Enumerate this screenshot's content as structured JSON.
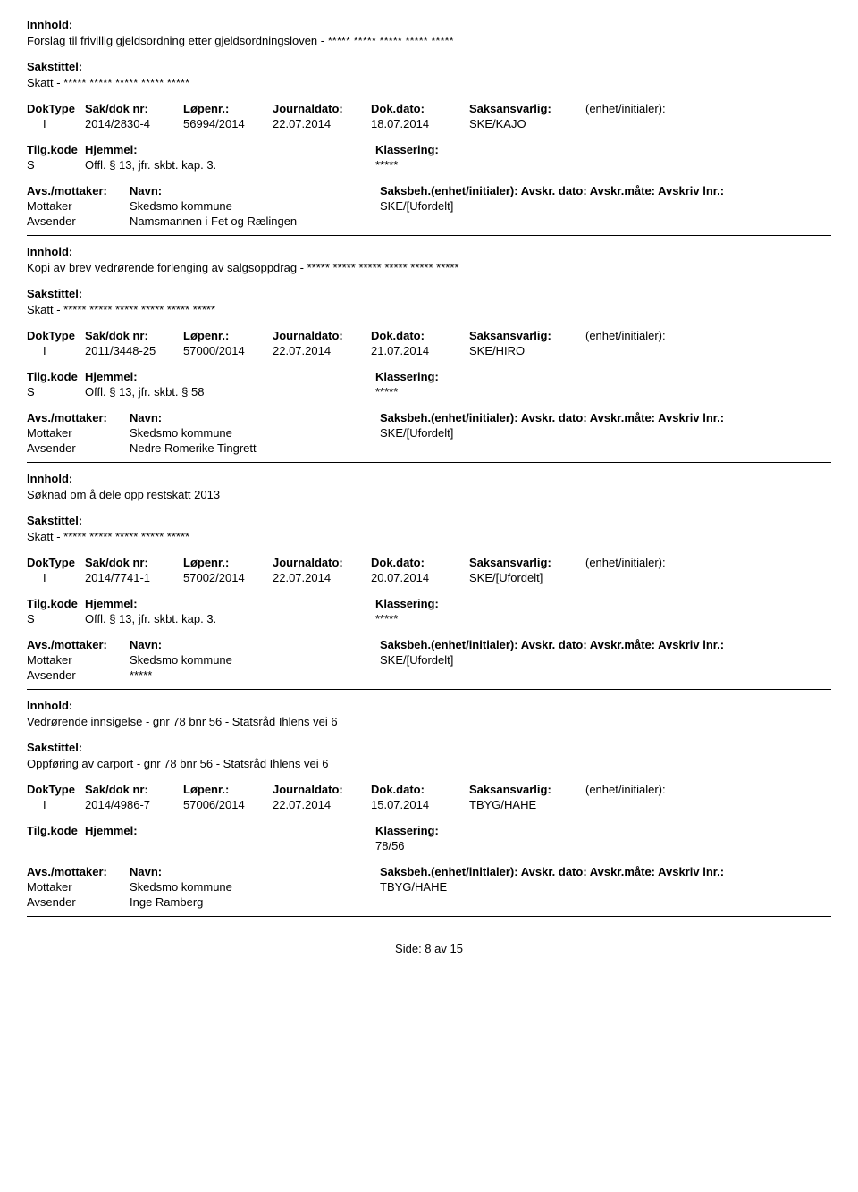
{
  "labels": {
    "innhold": "Innhold:",
    "sakstittel": "Sakstittel:",
    "doktype": "DokType",
    "sakdok": "Sak/dok nr:",
    "lopenr": "Løpenr.:",
    "journaldato": "Journaldato:",
    "dokdato": "Dok.dato:",
    "saksansvarlig": "Saksansvarlig:",
    "enhet": "(enhet/initialer):",
    "tilgkode": "Tilg.kode",
    "hjemmel": "Hjemmel:",
    "klassering": "Klassering:",
    "avsmot": "Avs./mottaker:",
    "navn": "Navn:",
    "saksbeh_line": "Saksbeh.(enhet/initialer): Avskr. dato:  Avskr.måte:  Avskriv lnr.:",
    "mottaker": "Mottaker",
    "avsender": "Avsender"
  },
  "entries": [
    {
      "innhold": "Forslag til frivillig gjeldsordning etter gjeldsordningsloven - ***** ***** ***** ***** *****",
      "sakstittel": "Skatt - ***** ***** ***** ***** *****",
      "doktype": "I",
      "sakdok": "2014/2830-4",
      "lopenr": "56994/2014",
      "journaldato": "22.07.2014",
      "dokdato": "18.07.2014",
      "saksansvarlig": "SKE/KAJO",
      "enhet": "",
      "tilgkode": "S",
      "hjemmel": "Offl. § 13, jfr. skbt. kap. 3.",
      "klassering": "*****",
      "mottaker_navn": "Skedsmo kommune",
      "mottaker_saksbeh": "SKE/[Ufordelt]",
      "avsender_navn": "Namsmannen i Fet og Rælingen",
      "avsender_saksbeh": ""
    },
    {
      "innhold": "Kopi av brev vedrørende forlenging av salgsoppdrag - ***** ***** ***** ***** ***** *****",
      "sakstittel": "Skatt - ***** ***** ***** ***** ***** *****",
      "doktype": "I",
      "sakdok": "2011/3448-25",
      "lopenr": "57000/2014",
      "journaldato": "22.07.2014",
      "dokdato": "21.07.2014",
      "saksansvarlig": "SKE/HIRO",
      "enhet": "",
      "tilgkode": "S",
      "hjemmel": "Offl. § 13, jfr. skbt. § 58",
      "klassering": "*****",
      "mottaker_navn": "Skedsmo kommune",
      "mottaker_saksbeh": "SKE/[Ufordelt]",
      "avsender_navn": "Nedre Romerike Tingrett",
      "avsender_saksbeh": ""
    },
    {
      "innhold": "Søknad om å dele opp restskatt 2013",
      "sakstittel": "Skatt - ***** ***** ***** ***** *****",
      "doktype": "I",
      "sakdok": "2014/7741-1",
      "lopenr": "57002/2014",
      "journaldato": "22.07.2014",
      "dokdato": "20.07.2014",
      "saksansvarlig": "SKE/[Ufordelt]",
      "enhet": "",
      "tilgkode": "S",
      "hjemmel": "Offl. § 13, jfr. skbt. kap. 3.",
      "klassering": "*****",
      "mottaker_navn": "Skedsmo kommune",
      "mottaker_saksbeh": "SKE/[Ufordelt]",
      "avsender_navn": "*****",
      "avsender_saksbeh": ""
    },
    {
      "innhold": "Vedrørende innsigelse - gnr 78 bnr 56 - Statsråd Ihlens vei 6",
      "sakstittel": "Oppføring av carport - gnr 78 bnr 56 - Statsråd Ihlens vei 6",
      "doktype": "I",
      "sakdok": "2014/4986-7",
      "lopenr": "57006/2014",
      "journaldato": "22.07.2014",
      "dokdato": "15.07.2014",
      "saksansvarlig": "TBYG/HAHE",
      "enhet": "",
      "tilgkode": "",
      "hjemmel": "",
      "klassering": "78/56",
      "mottaker_navn": "Skedsmo kommune",
      "mottaker_saksbeh": "TBYG/HAHE",
      "avsender_navn": "Inge Ramberg",
      "avsender_saksbeh": ""
    }
  ],
  "footer": "Side: 8 av 15"
}
